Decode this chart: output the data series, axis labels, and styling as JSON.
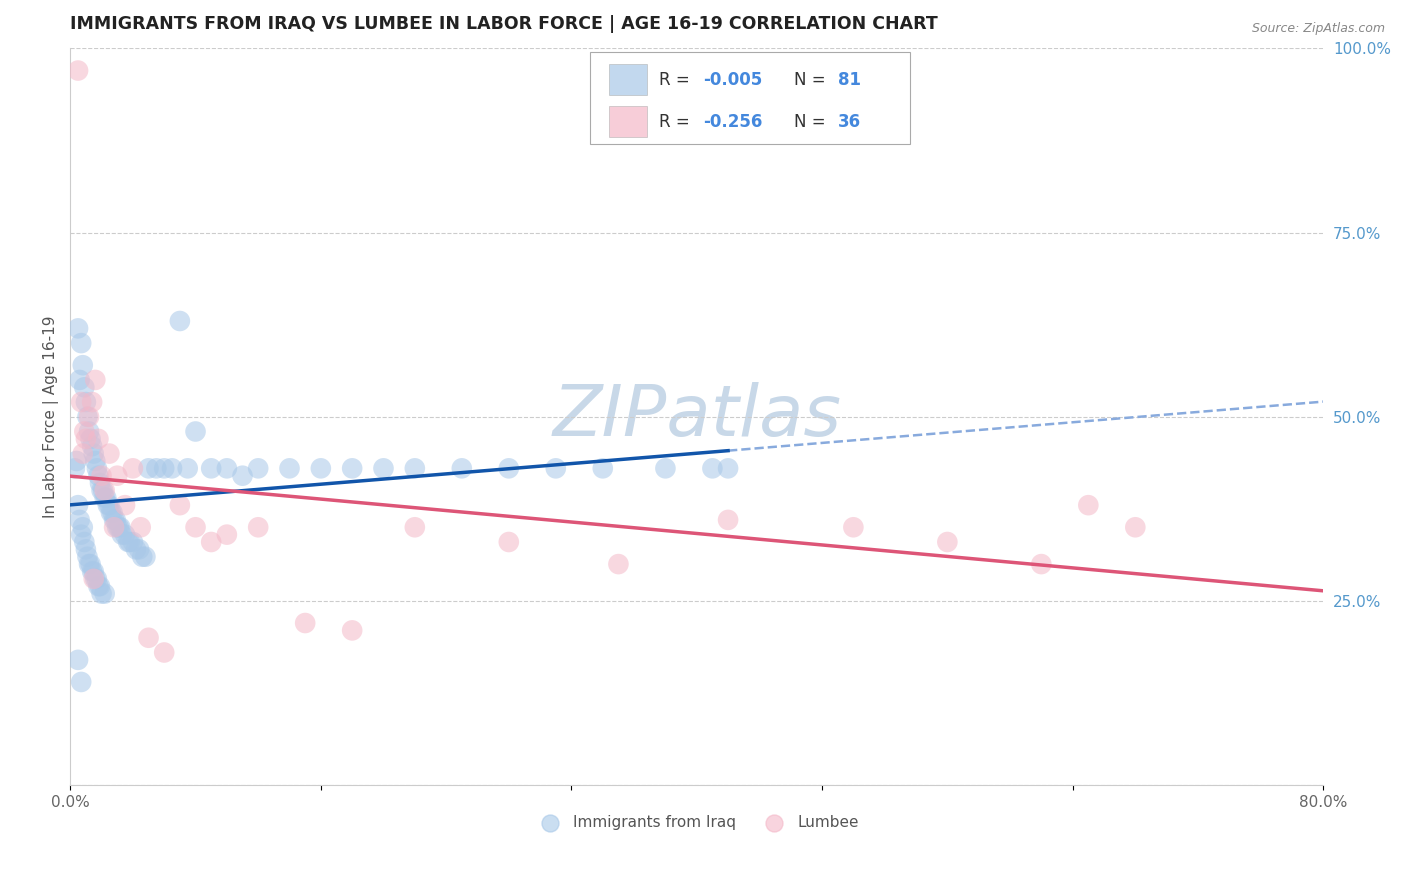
{
  "title": "IMMIGRANTS FROM IRAQ VS LUMBEE IN LABOR FORCE | AGE 16-19 CORRELATION CHART",
  "source": "Source: ZipAtlas.com",
  "ylabel": "In Labor Force | Age 16-19",
  "xlim": [
    0.0,
    0.8
  ],
  "ylim": [
    0.0,
    1.0
  ],
  "grid_color": "#cccccc",
  "background_color": "#ffffff",
  "iraq_color": "#a8c8e8",
  "lumbee_color": "#f4b8c8",
  "iraq_R": -0.005,
  "iraq_N": 81,
  "lumbee_R": -0.256,
  "lumbee_N": 36,
  "text_color": "#333333",
  "value_color": "#4488dd",
  "iraq_regression_color": "#1155aa",
  "lumbee_regression_color": "#dd5577",
  "iraq_dashed_color": "#88aadd",
  "right_tick_color": "#5599cc",
  "watermark_color": "#c8d8e8",
  "iraq_points_x": [
    0.003,
    0.004,
    0.005,
    0.005,
    0.006,
    0.006,
    0.007,
    0.007,
    0.008,
    0.008,
    0.009,
    0.009,
    0.01,
    0.01,
    0.011,
    0.011,
    0.012,
    0.012,
    0.013,
    0.013,
    0.014,
    0.014,
    0.015,
    0.015,
    0.016,
    0.016,
    0.017,
    0.017,
    0.018,
    0.018,
    0.019,
    0.019,
    0.02,
    0.02,
    0.021,
    0.022,
    0.022,
    0.023,
    0.024,
    0.025,
    0.026,
    0.027,
    0.028,
    0.029,
    0.03,
    0.031,
    0.032,
    0.033,
    0.035,
    0.037,
    0.038,
    0.04,
    0.042,
    0.044,
    0.046,
    0.048,
    0.05,
    0.055,
    0.06,
    0.065,
    0.07,
    0.075,
    0.08,
    0.09,
    0.1,
    0.11,
    0.12,
    0.14,
    0.16,
    0.18,
    0.2,
    0.22,
    0.25,
    0.28,
    0.31,
    0.34,
    0.38,
    0.41,
    0.42,
    0.005,
    0.007
  ],
  "iraq_points_y": [
    0.43,
    0.44,
    0.62,
    0.38,
    0.55,
    0.36,
    0.6,
    0.34,
    0.57,
    0.35,
    0.54,
    0.33,
    0.52,
    0.32,
    0.5,
    0.31,
    0.48,
    0.3,
    0.47,
    0.3,
    0.46,
    0.29,
    0.45,
    0.29,
    0.44,
    0.28,
    0.43,
    0.28,
    0.42,
    0.27,
    0.41,
    0.27,
    0.4,
    0.26,
    0.4,
    0.39,
    0.26,
    0.39,
    0.38,
    0.38,
    0.37,
    0.37,
    0.36,
    0.36,
    0.35,
    0.35,
    0.35,
    0.34,
    0.34,
    0.33,
    0.33,
    0.33,
    0.32,
    0.32,
    0.31,
    0.31,
    0.43,
    0.43,
    0.43,
    0.43,
    0.63,
    0.43,
    0.48,
    0.43,
    0.43,
    0.42,
    0.43,
    0.43,
    0.43,
    0.43,
    0.43,
    0.43,
    0.43,
    0.43,
    0.43,
    0.43,
    0.43,
    0.43,
    0.43,
    0.17,
    0.14
  ],
  "lumbee_points_x": [
    0.005,
    0.007,
    0.009,
    0.01,
    0.012,
    0.014,
    0.016,
    0.018,
    0.02,
    0.022,
    0.025,
    0.028,
    0.03,
    0.035,
    0.04,
    0.045,
    0.05,
    0.06,
    0.07,
    0.08,
    0.09,
    0.1,
    0.12,
    0.15,
    0.18,
    0.22,
    0.28,
    0.35,
    0.42,
    0.5,
    0.56,
    0.62,
    0.65,
    0.68,
    0.008,
    0.015
  ],
  "lumbee_points_y": [
    0.97,
    0.52,
    0.48,
    0.47,
    0.5,
    0.52,
    0.55,
    0.47,
    0.42,
    0.4,
    0.45,
    0.35,
    0.42,
    0.38,
    0.43,
    0.35,
    0.2,
    0.18,
    0.38,
    0.35,
    0.33,
    0.34,
    0.35,
    0.22,
    0.21,
    0.35,
    0.33,
    0.3,
    0.36,
    0.35,
    0.33,
    0.3,
    0.38,
    0.35,
    0.45,
    0.28
  ]
}
